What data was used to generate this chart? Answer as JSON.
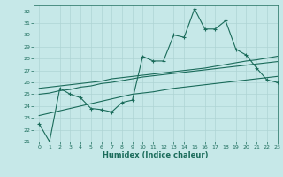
{
  "xlabel": "Humidex (Indice chaleur)",
  "xlim": [
    -0.5,
    23
  ],
  "ylim": [
    21,
    32.5
  ],
  "yticks": [
    21,
    22,
    23,
    24,
    25,
    26,
    27,
    28,
    29,
    30,
    31,
    32
  ],
  "xticks": [
    0,
    1,
    2,
    3,
    4,
    5,
    6,
    7,
    8,
    9,
    10,
    11,
    12,
    13,
    14,
    15,
    16,
    17,
    18,
    19,
    20,
    21,
    22,
    23
  ],
  "bg_color": "#c6e8e8",
  "grid_color": "#aed4d4",
  "line_color": "#1a6b5a",
  "line_main": [
    22.5,
    21.0,
    25.5,
    25.0,
    24.7,
    23.8,
    23.7,
    23.5,
    24.3,
    24.5,
    28.2,
    27.8,
    27.8,
    30.0,
    29.8,
    32.2,
    30.5,
    30.5,
    31.2,
    28.8,
    28.3,
    27.2,
    26.2,
    26.0
  ],
  "line_upper": [
    25.5,
    25.6,
    25.7,
    25.8,
    25.9,
    26.0,
    26.1,
    26.3,
    26.4,
    26.5,
    26.6,
    26.7,
    26.8,
    26.9,
    27.0,
    27.1,
    27.2,
    27.35,
    27.5,
    27.65,
    27.8,
    27.9,
    28.05,
    28.2
  ],
  "line_lower": [
    23.2,
    23.4,
    23.6,
    23.8,
    24.0,
    24.2,
    24.4,
    24.6,
    24.8,
    25.0,
    25.1,
    25.2,
    25.35,
    25.5,
    25.6,
    25.7,
    25.8,
    25.9,
    26.0,
    26.1,
    26.2,
    26.3,
    26.4,
    26.5
  ],
  "line_mid": [
    25.0,
    25.1,
    25.3,
    25.4,
    25.6,
    25.7,
    25.9,
    26.0,
    26.15,
    26.3,
    26.45,
    26.55,
    26.65,
    26.75,
    26.85,
    26.95,
    27.05,
    27.15,
    27.25,
    27.35,
    27.45,
    27.55,
    27.65,
    27.75
  ]
}
